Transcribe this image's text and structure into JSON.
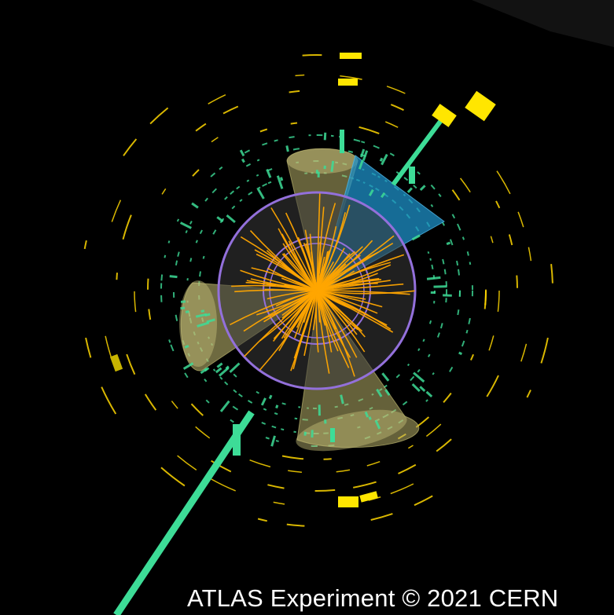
{
  "credit": {
    "text": "ATLAS Experiment © 2021 CERN",
    "color": "#ffffff"
  },
  "colors": {
    "background": "#000000",
    "tracks": "#ffa500",
    "inner_detector_ring": "#9370db",
    "jet_cones": "#b8b06a",
    "highlighted_jet_cone": "#1e90c8",
    "muon_tracks": "#3ddc97",
    "calorimeter_towers": "#3ddc97",
    "outer_segments": "#ffd700"
  }
}
